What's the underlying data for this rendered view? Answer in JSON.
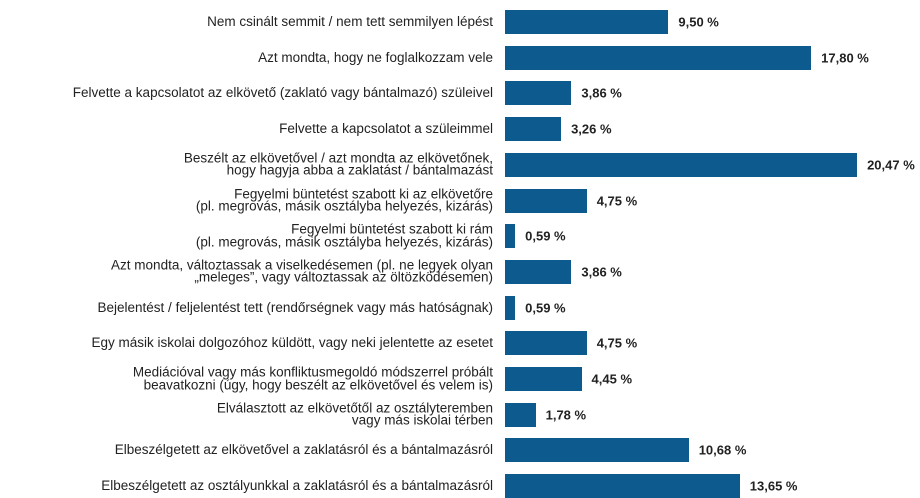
{
  "chart_data": {
    "type": "bar",
    "orientation": "horizontal",
    "color": "#0d5a8e",
    "categories": [
      "Nem csinált semmit / nem tett semmilyen lépést",
      "Azt mondta, hogy ne foglalkozzam vele",
      "Felvette a kapcsolatot az elkövető (zaklató vagy bántalmazó) szüleivel",
      "Felvette a kapcsolatot a szüleimmel",
      "Beszélt az elkövetővel / azt mondta az elkövetőnek,\nhogy hagyja abba a zaklatást / bántalmazást",
      "Fegyelmi büntetést szabott ki az elkövetőre\n(pl. megrovás, másik osztályba helyezés, kizárás)",
      "Fegyelmi büntetést szabott ki rám\n(pl. megrovás, másik osztályba helyezés, kizárás)",
      "Azt mondta, változtassak a viselkedésemen (pl. ne legyek olyan\n„meleges”, vagy változtassak az öltözködésemen)",
      "Bejelentést / feljelentést tett (rendőrségnek vagy más hatóságnak)",
      "Egy másik iskolai dolgozóhoz küldött, vagy neki jelentette az esetet",
      "Mediációval vagy más konfliktusmegoldó módszerrel próbált\nbeavatkozni (úgy, hogy beszélt az elkövetővel és velem is)",
      "Elválasztott az elkövetőtől az osztályteremben\nvagy más iskolai térben",
      "Elbeszélgetett az elkövetővel a zaklatásról és a bántalmazásról",
      "Elbeszélgetett az osztályunkkal a zaklatásról és a bántalmazásról"
    ],
    "values": [
      9.5,
      17.8,
      3.86,
      3.26,
      20.47,
      4.75,
      0.59,
      3.86,
      0.59,
      4.75,
      4.45,
      1.78,
      10.68,
      13.65
    ],
    "value_labels": [
      "9,50 %",
      "17,80 %",
      "3,86 %",
      "3,26 %",
      "20,47 %",
      "4,75 %",
      "0,59 %",
      "3,86 %",
      "0,59 %",
      "4,75 %",
      "4,45 %",
      "1,78 %",
      "10,68 %",
      "13,65 %"
    ]
  }
}
